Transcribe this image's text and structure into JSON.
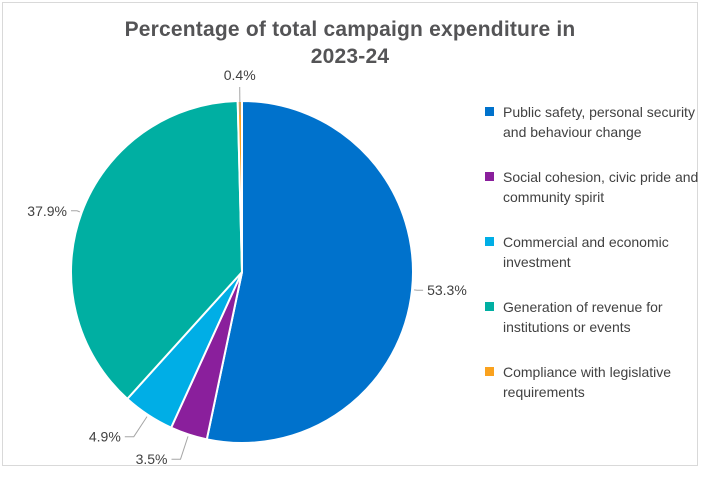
{
  "window": {
    "background": "#FFFFFF",
    "border_color": "#D9D9D9"
  },
  "title": "Percentage of total campaign expenditure in\n2023-24",
  "chart_data": {
    "type": "pie",
    "title": "Percentage of total campaign expenditure in 2023-24",
    "start_angle_deg": 0,
    "direction": "clockwise",
    "legend_position": "right",
    "legend_marker": "square",
    "text_color": "#414141",
    "title_color": "#545456",
    "leader_line_color": "#A6A6A6",
    "slices": [
      {
        "label": "Public safety, personal security and behaviour change",
        "value": 53.3,
        "pct_label": "53.3%",
        "color": "#0072CC"
      },
      {
        "label": "Social cohesion, civic pride and community spirit",
        "value": 3.5,
        "pct_label": "3.5%",
        "color": "#8A1F9C"
      },
      {
        "label": "Commercial and economic investment",
        "value": 4.9,
        "pct_label": "4.9%",
        "color": "#00AEE6"
      },
      {
        "label": "Generation of revenue for institutions or events",
        "value": 37.9,
        "pct_label": "37.9%",
        "color": "#00AFA2"
      },
      {
        "label": "Compliance with legislative requirements",
        "value": 0.4,
        "pct_label": "0.4%",
        "color": "#FAA21E"
      }
    ]
  }
}
